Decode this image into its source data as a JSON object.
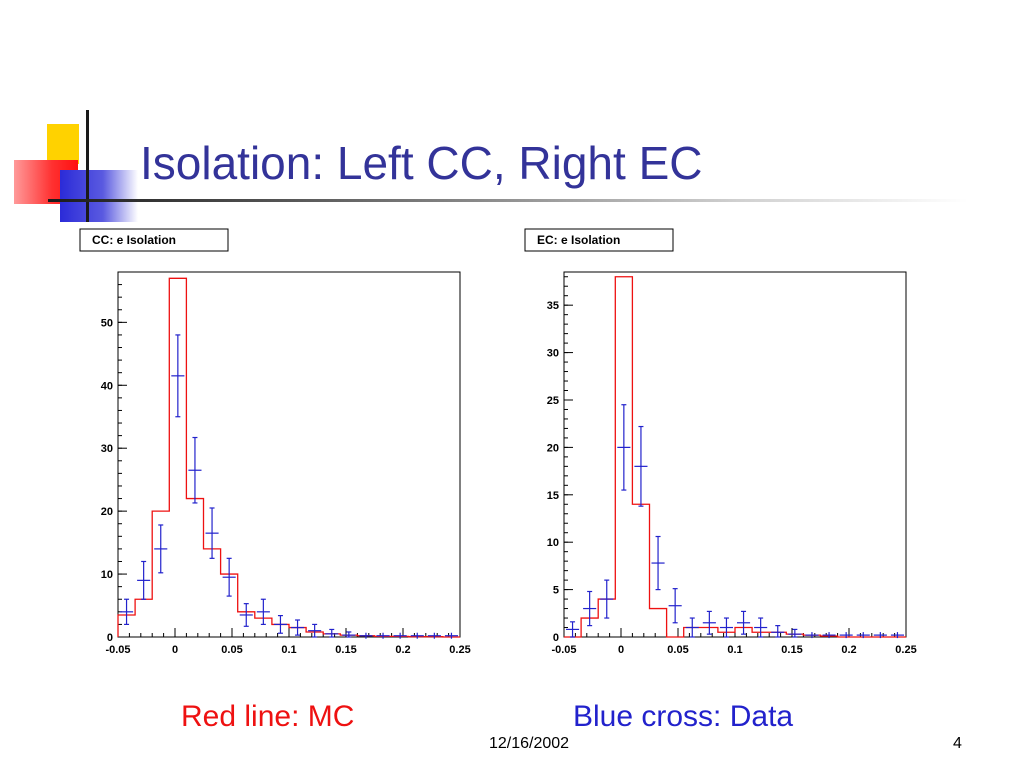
{
  "slide": {
    "title": "Isolation: Left CC, Right EC",
    "caption_left": "Red line: MC",
    "caption_right": "Blue cross: Data",
    "date": "12/16/2002",
    "page_number": "4"
  },
  "colors": {
    "title": "#333399",
    "mc_line": "#ee1111",
    "data_cross": "#2222cc",
    "accent_yellow": "#ffd200",
    "accent_red": "#ff3030",
    "accent_blue": "#2b2bd8"
  },
  "chart_data": [
    {
      "type": "histogram",
      "title": "CC: e Isolation",
      "xlim": [
        -0.05,
        0.25
      ],
      "ylim": [
        0,
        58
      ],
      "x_ticks": [
        -0.05,
        0,
        0.05,
        0.1,
        0.15,
        0.2,
        0.25
      ],
      "x_tick_labels": [
        "-0.05",
        "0",
        "0.05",
        "0.1",
        "0.15",
        "0.2",
        "0.25"
      ],
      "y_ticks": [
        0,
        10,
        20,
        30,
        40,
        50
      ],
      "y_tick_labels": [
        "0",
        "10",
        "20",
        "30",
        "40",
        "50"
      ],
      "bin_edges": [
        -0.05,
        -0.035,
        -0.02,
        -0.005,
        0.01,
        0.025,
        0.04,
        0.055,
        0.07,
        0.085,
        0.1,
        0.115,
        0.13,
        0.145,
        0.16,
        0.175,
        0.19,
        0.205,
        0.22,
        0.235,
        0.25
      ],
      "series": [
        {
          "style": "step",
          "color": "#ee1111",
          "values": [
            3.5,
            6,
            20,
            57,
            22,
            14,
            10,
            4,
            3,
            2,
            1.5,
            0.8,
            0.5,
            0.3,
            0.2,
            0.1,
            0.1,
            0.05,
            0.05,
            0
          ]
        },
        {
          "style": "errorbar",
          "color": "#2222cc",
          "values": [
            4,
            9,
            14,
            41.5,
            26.5,
            16.5,
            9.5,
            3.5,
            4,
            2,
            1.5,
            1,
            0.5,
            0.3,
            0.2,
            0.2,
            0.2,
            0.2,
            0.2,
            0.2
          ],
          "errors": [
            2,
            3,
            3.8,
            6.5,
            5.2,
            4,
            3,
            1.8,
            2,
            1.4,
            1.2,
            1,
            0.7,
            0.5,
            0,
            0,
            0,
            0,
            0,
            0
          ]
        }
      ]
    },
    {
      "type": "histogram",
      "title": "EC: e Isolation",
      "xlim": [
        -0.05,
        0.25
      ],
      "ylim": [
        0,
        38.5
      ],
      "x_ticks": [
        -0.05,
        0,
        0.05,
        0.1,
        0.15,
        0.2,
        0.25
      ],
      "x_tick_labels": [
        "-0.05",
        "0",
        "0.05",
        "0.1",
        "0.15",
        "0.2",
        "0.25"
      ],
      "y_ticks": [
        0,
        5,
        10,
        15,
        20,
        25,
        30,
        35
      ],
      "y_tick_labels": [
        "0",
        "5",
        "10",
        "15",
        "20",
        "25",
        "30",
        "35"
      ],
      "bin_edges": [
        -0.05,
        -0.035,
        -0.02,
        -0.005,
        0.01,
        0.025,
        0.04,
        0.055,
        0.07,
        0.085,
        0.1,
        0.115,
        0.13,
        0.145,
        0.16,
        0.175,
        0.19,
        0.205,
        0.22,
        0.235,
        0.25
      ],
      "series": [
        {
          "style": "step",
          "color": "#ee1111",
          "values": [
            0,
            2,
            4,
            38,
            14,
            3,
            0,
            1,
            1,
            0.5,
            1,
            0.5,
            0.5,
            0.3,
            0.2,
            0.1,
            0,
            0,
            0,
            0
          ]
        },
        {
          "style": "errorbar",
          "color": "#2222cc",
          "values": [
            0.8,
            3,
            4,
            20,
            18,
            7.8,
            3.3,
            1,
            1.5,
            1,
            1.5,
            1,
            0.5,
            0.3,
            0.2,
            0.2,
            0.2,
            0.2,
            0.2,
            0.2
          ],
          "errors": [
            0.8,
            1.8,
            2,
            4.5,
            4.2,
            2.8,
            1.8,
            1,
            1.2,
            1,
            1.2,
            1,
            0.7,
            0.5,
            0,
            0,
            0,
            0,
            0,
            0
          ]
        }
      ]
    }
  ]
}
